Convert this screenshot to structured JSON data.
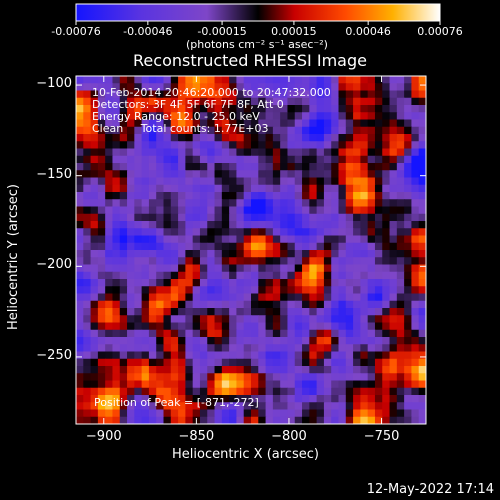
{
  "colorbar": {
    "tick_labels": [
      "-0.00076",
      "-0.00046",
      "-0.00015",
      "0.00015",
      "0.00046",
      "0.00076"
    ],
    "unit_label": "(photons cm⁻² s⁻¹ asec⁻²)",
    "range": [
      -0.00076,
      0.00076
    ]
  },
  "chart_data": {
    "type": "heatmap",
    "title": "Reconstructed RHESSI Image",
    "xlabel": "Heliocentric X (arcsec)",
    "ylabel": "Heliocentric Y (arcsec)",
    "xlim": [
      -915,
      -726
    ],
    "ylim": [
      -287,
      -95
    ],
    "x_ticks": [
      -900,
      -850,
      -800,
      -750
    ],
    "y_ticks": [
      -100,
      -150,
      -200,
      -250
    ],
    "annotations": [
      "10-Feb-2014 20:46:20.000 to 20:47:32.000",
      "Detectors: 3F 4F 5F 6F 7F 8F, Att 0",
      "Energy Range: 12.0 - 25.0 keV",
      "Clean     Total counts: 1.77E+03"
    ],
    "position_label": "Position of Peak = [-871,-272]",
    "peak_position": [
      -871,
      -272
    ]
  },
  "footer": {
    "timestamp": "12-May-2022 17:14"
  }
}
